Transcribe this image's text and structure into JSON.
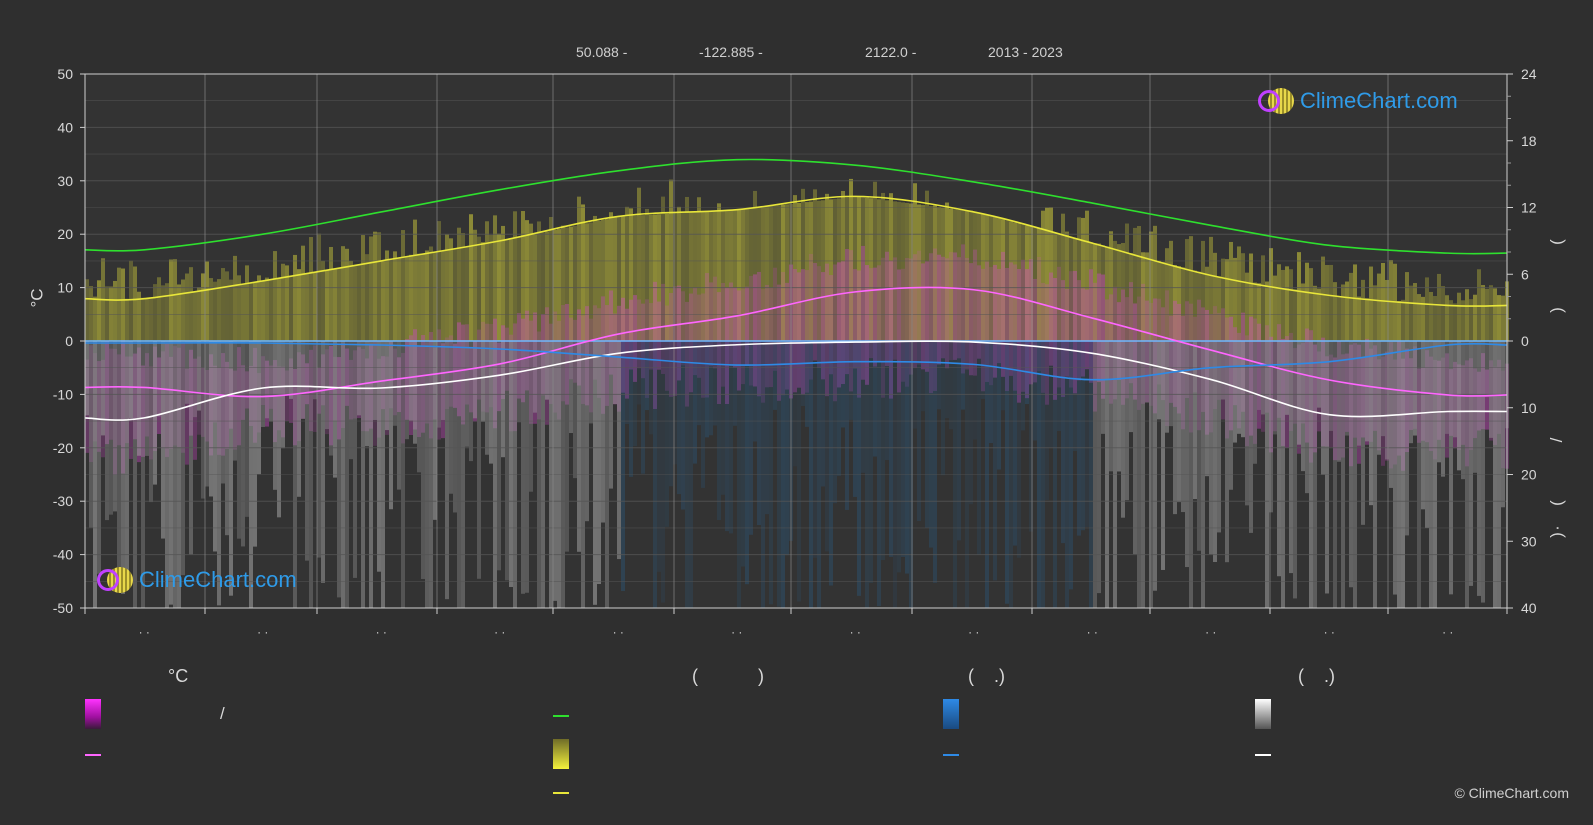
{
  "header": {
    "lat": "50.088 -",
    "lon": "-122.885 -",
    "elev": "2122.0 -",
    "years": "2013 - 2023"
  },
  "axes": {
    "left_unit": "°C",
    "left_ticks": [
      "50",
      "40",
      "30",
      "20",
      "10",
      "0",
      "-10",
      "-20",
      "-30",
      "-40",
      "-50"
    ],
    "right_top_ticks": [
      "24",
      "18",
      "12",
      "6",
      "0"
    ],
    "right_bottom_ticks": [
      "10",
      "20",
      "30",
      "40"
    ],
    "right_label_glyphs": [
      "(",
      ")",
      "/",
      "(",
      "·",
      ")"
    ],
    "month_labels": [
      "· ·",
      "· ·",
      "· ·",
      "· ·",
      "· ·",
      "· ·",
      "· ·",
      "· ·",
      "· ·",
      "· ·",
      "· ·",
      "· ·"
    ]
  },
  "logo": {
    "text": "ClimeChart.com"
  },
  "legend": {
    "col1_head": "°C",
    "col1_slash": "/",
    "col2_head": "(            )",
    "col3_head": "(    .)",
    "col4_head": "(    .)"
  },
  "copyright": "© ClimeChart.com",
  "colors": {
    "background": "#2f2f2f",
    "daylight": "#2ee02e",
    "sunshine": "#e8e63a",
    "temp_max": "#ff66ff",
    "temp_min": "#ffffff",
    "precip": "#2e8ae6",
    "brand_blue": "#2f9be8"
  },
  "chart_data": {
    "type": "line",
    "months": 12,
    "y_left_range": [
      -50,
      50
    ],
    "y_right_top_range": [
      0,
      24
    ],
    "y_right_bottom_range": [
      0,
      40
    ],
    "grid": true,
    "series": [
      {
        "key": "daylight_hours",
        "values": [
          8.2,
          9.6,
          11.6,
          13.6,
          15.3,
          16.3,
          15.8,
          14.3,
          12.4,
          10.4,
          8.6,
          7.9
        ]
      },
      {
        "key": "sunshine_hours",
        "values": [
          3.8,
          5.4,
          7.2,
          9.0,
          11.2,
          11.8,
          13.0,
          11.6,
          8.8,
          5.9,
          4.1,
          3.2
        ]
      },
      {
        "key": "temp_max_c",
        "values": [
          -8.7,
          -10.4,
          -7.5,
          -4.3,
          1.3,
          4.7,
          9.2,
          9.6,
          4.3,
          -1.7,
          -7.3,
          -10.1
        ]
      },
      {
        "key": "temp_min_c",
        "values": [
          -14.4,
          -8.8,
          -8.8,
          -6.4,
          -2.3,
          -0.7,
          -0.2,
          -0.2,
          -2.3,
          -7.2,
          -13.8,
          -13.2
        ]
      },
      {
        "key": "precip_mm",
        "values": [
          0.3,
          0.3,
          0.6,
          1.2,
          2.4,
          3.6,
          3.1,
          3.5,
          5.8,
          4.0,
          3.1,
          0.6
        ]
      }
    ]
  }
}
